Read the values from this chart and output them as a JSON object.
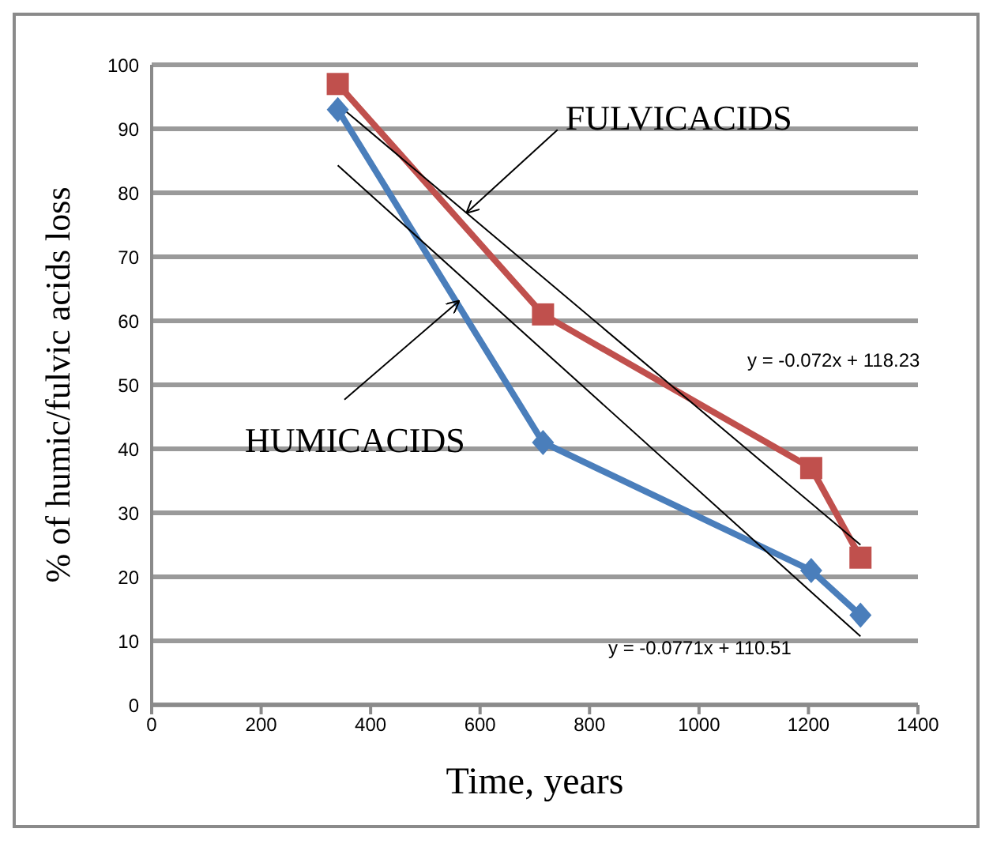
{
  "chart_data": {
    "type": "line",
    "xlabel": "Time, years",
    "ylabel": "% of humic/fulvic acids loss",
    "xlim": [
      0,
      1400
    ],
    "xticks": [
      0,
      200,
      400,
      600,
      800,
      1000,
      1200,
      1400
    ],
    "ylim": [
      0,
      100
    ],
    "yticks": [
      0,
      10,
      20,
      30,
      40,
      50,
      60,
      70,
      80,
      90,
      100
    ],
    "grid": "y",
    "legend": false,
    "series": [
      {
        "color": "#c0504d",
        "marker": "square",
        "x": [
          340,
          715,
          1205,
          1295
        ],
        "values": [
          97,
          61,
          37,
          23
        ]
      },
      {
        "color": "#4a7ebb",
        "marker": "diamond",
        "x": [
          340,
          715,
          1205,
          1295
        ],
        "values": [
          93,
          41,
          21,
          14
        ]
      },
      {
        "color": "#000000",
        "marker": "none",
        "x": [
          340,
          1295
        ],
        "values": [
          93.8,
          25.0
        ]
      },
      {
        "color": "#000000",
        "marker": "none",
        "x": [
          340,
          1295
        ],
        "values": [
          84.3,
          10.7
        ]
      }
    ],
    "annotations": [
      {
        "text": "FULVICACIDS",
        "x": 577,
        "y": 77
      },
      {
        "text": "HUMICACIDS",
        "x": 560,
        "y": 63
      },
      "y = -0.072x + 118.23",
      "y = -0.0771x + 110.51"
    ]
  }
}
